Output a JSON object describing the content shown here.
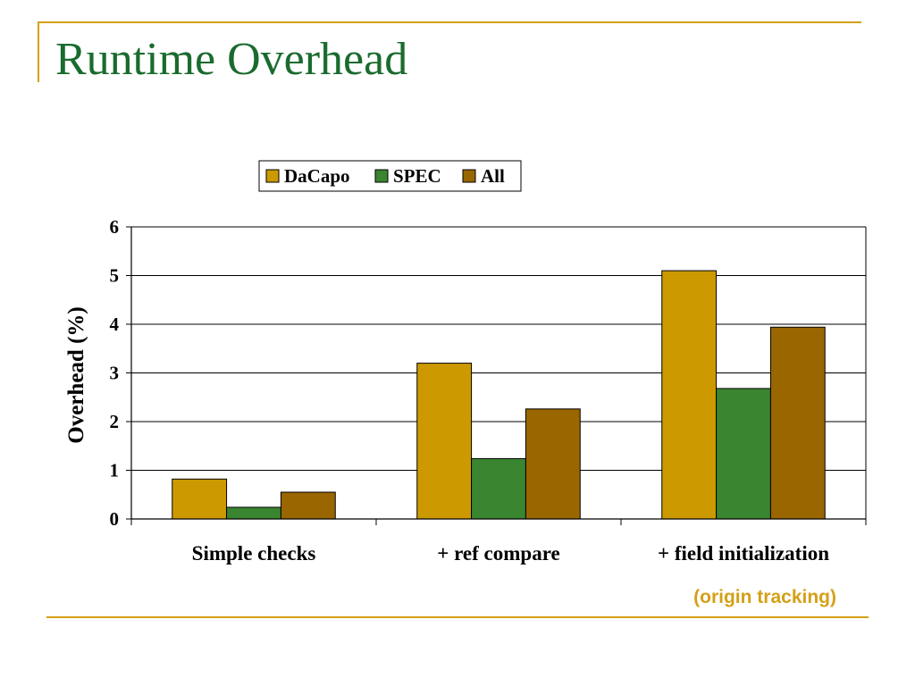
{
  "slide": {
    "title": "Runtime Overhead",
    "note": "(origin tracking)"
  },
  "colors": {
    "accent": "#d4a017",
    "title": "#1a6b2e",
    "gridline": "#000000"
  },
  "chart_data": {
    "type": "bar",
    "title": "",
    "xlabel": "",
    "ylabel": "Overhead (%)",
    "ylim": [
      0,
      6
    ],
    "yticks": [
      0,
      1,
      2,
      3,
      4,
      5,
      6
    ],
    "grid": true,
    "legend_position": "top-center",
    "categories": [
      "Simple checks",
      "+ ref compare",
      "+ field initialization"
    ],
    "series": [
      {
        "name": "DaCapo",
        "color": "#cc9900",
        "values": [
          0.82,
          3.2,
          5.1
        ]
      },
      {
        "name": "SPEC",
        "color": "#3a8530",
        "values": [
          0.24,
          1.24,
          2.68
        ]
      },
      {
        "name": "All",
        "color": "#996600",
        "values": [
          0.55,
          2.26,
          3.94
        ]
      }
    ]
  }
}
